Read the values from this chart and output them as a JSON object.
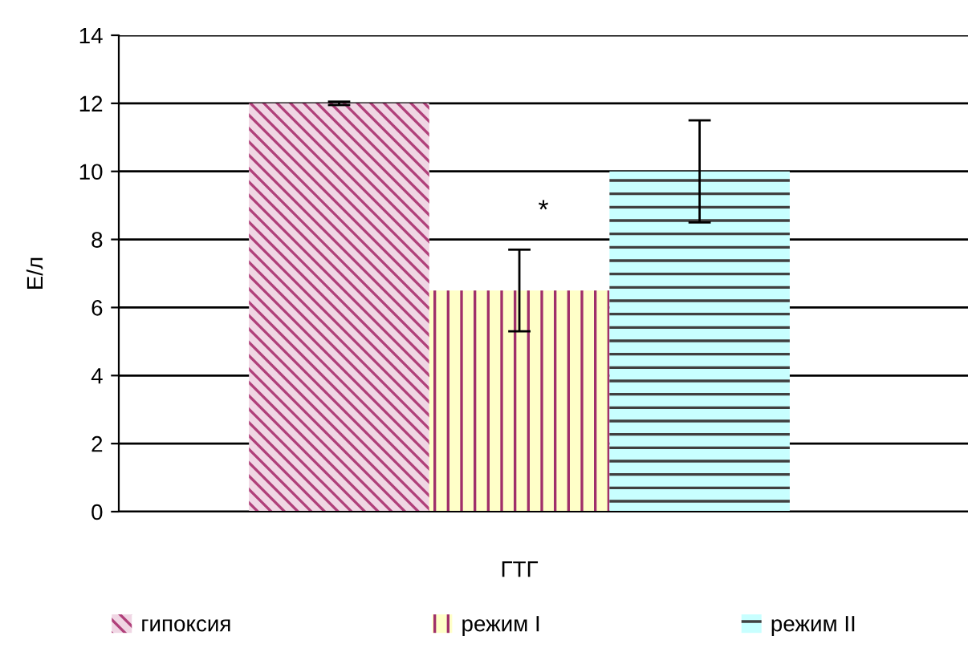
{
  "chart_data": {
    "type": "bar",
    "ylabel": "Е/л",
    "categories": [
      "ГТГ"
    ],
    "series": [
      {
        "name": "гипоксия",
        "color": "#f0d6e4",
        "values": [
          12
        ],
        "errors": [
          0.05
        ]
      },
      {
        "name": "режим I",
        "color": "#ffffc8",
        "values": [
          6.5
        ],
        "errors": [
          1.2
        ]
      },
      {
        "name": "режим II",
        "color": "#c8ffff",
        "values": [
          10
        ],
        "errors": [
          1.5
        ]
      }
    ],
    "annotations": [
      "*"
    ],
    "ylim": [
      0,
      14
    ],
    "yticks": [
      0,
      2,
      4,
      6,
      8,
      10,
      12,
      14
    ],
    "grid": "y",
    "legend": "bottom"
  }
}
